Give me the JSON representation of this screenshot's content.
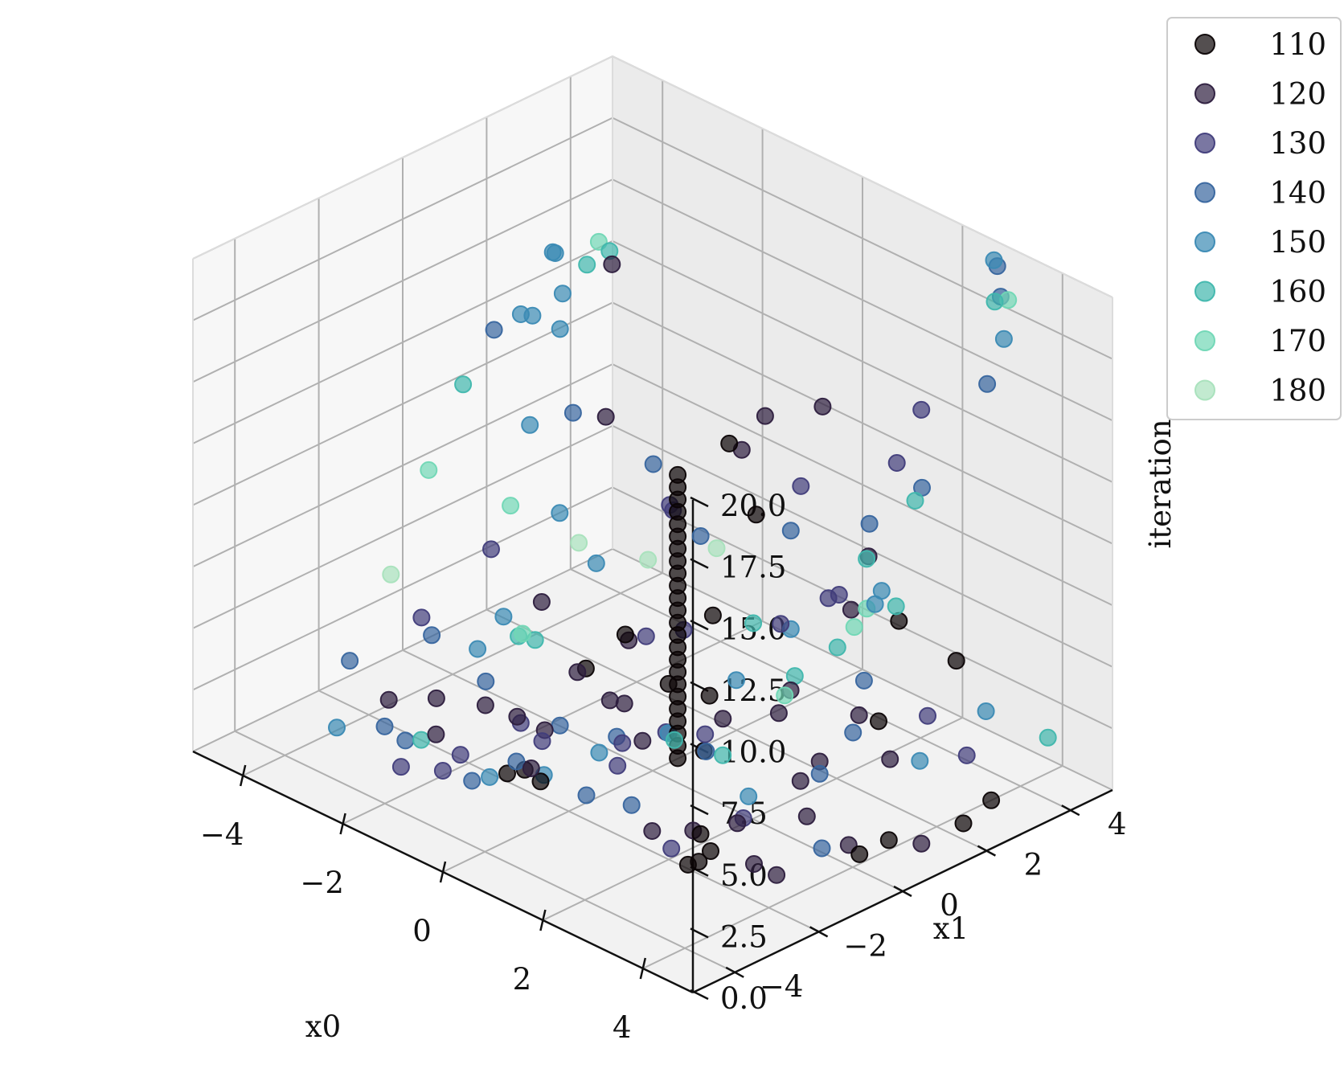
{
  "chart_data": {
    "type": "scatter",
    "projection": "3d",
    "title": "",
    "xlabel": "x0",
    "ylabel": "x1",
    "zlabel": "iteration",
    "xlim": [
      -5,
      5
    ],
    "ylim": [
      -5,
      5
    ],
    "zlim": [
      0,
      20
    ],
    "x_ticks": [
      -4,
      -2,
      0,
      2,
      4
    ],
    "y_ticks": [
      -4,
      -2,
      0,
      2,
      4
    ],
    "z_ticks": [
      0,
      2.5,
      5,
      7.5,
      10,
      12.5,
      15,
      17.5,
      20
    ],
    "x_tick_labels": [
      "−4",
      "−2",
      "0",
      "2",
      "4"
    ],
    "y_tick_labels": [
      "−4",
      "−2",
      "0",
      "2",
      "4"
    ],
    "z_tick_labels": [
      "0.0",
      "2.5",
      "5.0",
      "7.5",
      "10.0",
      "12.5",
      "15.0",
      "17.5",
      "20.0"
    ],
    "grid": true,
    "legend_position": "top-right",
    "marker_alpha": 0.7,
    "series": [
      {
        "name": "110",
        "color": "#0b0405",
        "points": [
          [
            0.5,
            0.0,
            12.5
          ],
          [
            0.5,
            0.0,
            12.0
          ],
          [
            0.5,
            0.0,
            11.5
          ],
          [
            0.5,
            0.0,
            11.0
          ],
          [
            0.5,
            0.0,
            10.5
          ],
          [
            0.5,
            0.0,
            10.0
          ],
          [
            0.5,
            0.0,
            9.5
          ],
          [
            0.5,
            0.0,
            9.0
          ],
          [
            0.5,
            0.0,
            8.5
          ],
          [
            0.5,
            0.0,
            8.0
          ],
          [
            0.5,
            0.0,
            7.5
          ],
          [
            0.5,
            0.0,
            7.0
          ],
          [
            0.5,
            0.0,
            6.5
          ],
          [
            0.5,
            0.0,
            6.0
          ],
          [
            0.5,
            0.0,
            5.5
          ],
          [
            0.5,
            0.0,
            5.0
          ],
          [
            0.5,
            0.0,
            4.5
          ],
          [
            0.5,
            0.0,
            4.0
          ],
          [
            0.5,
            0.0,
            3.5
          ],
          [
            0.5,
            0.0,
            3.0
          ],
          [
            0.5,
            0.0,
            2.5
          ],
          [
            0.5,
            0.0,
            2.0
          ],
          [
            0.5,
            0.0,
            1.5
          ],
          [
            0.5,
            0.0,
            1.0
          ],
          [
            -0.4,
            2.3,
            11.0
          ],
          [
            0.7,
            0.6,
            6.5
          ],
          [
            0.8,
            0.4,
            3.5
          ],
          [
            -0.8,
            0.3,
            4.5
          ],
          [
            -1.0,
            -0.4,
            3.5
          ],
          [
            2.8,
            3.9,
            4.0
          ],
          [
            1.4,
            4.2,
            4.0
          ],
          [
            2.3,
            -1.6,
            1.0
          ],
          [
            2.5,
            -1.6,
            0.5
          ],
          [
            2.6,
            -2.0,
            0.5
          ],
          [
            2.3,
            -1.9,
            0.0
          ],
          [
            -0.9,
            -1.6,
            0.0
          ],
          [
            -1.3,
            -1.5,
            0.0
          ],
          [
            -1.4,
            -1.8,
            0.0
          ],
          [
            0.1,
            1.1,
            0.0
          ],
          [
            3.8,
            0.4,
            0.0
          ],
          [
            3.8,
            1.1,
            0.0
          ],
          [
            4.0,
            3.3,
            0.0
          ],
          [
            4.2,
            2.4,
            0.0
          ],
          [
            2.0,
            3.0,
            1.5
          ],
          [
            -0.7,
            3.3,
            7.0
          ],
          [
            0.4,
            -0.1,
            4.0
          ]
        ]
      },
      {
        "name": "120",
        "color": "#2d1e3e",
        "points": [
          [
            -1.9,
            -2.9,
            2.0
          ],
          [
            -1.5,
            -2.2,
            3.0
          ],
          [
            -1.2,
            -1.8,
            2.5
          ],
          [
            -0.9,
            -1.5,
            2.0
          ],
          [
            -0.5,
            -1.2,
            4.5
          ],
          [
            -0.1,
            -0.9,
            3.5
          ],
          [
            0.3,
            -0.6,
            2.0
          ],
          [
            -1.8,
            -0.5,
            5.5
          ],
          [
            -3.5,
            3.2,
            14.5
          ],
          [
            -2.7,
            2.1,
            10.0
          ],
          [
            -0.1,
            2.8,
            12.0
          ],
          [
            -0.4,
            2.6,
            10.5
          ],
          [
            1.3,
            2.5,
            14.0
          ],
          [
            1.8,
            3.0,
            8.0
          ],
          [
            1.2,
            3.3,
            5.0
          ],
          [
            1.5,
            1.5,
            3.5
          ],
          [
            1.6,
            1.1,
            3.0
          ],
          [
            2.7,
            1.7,
            3.5
          ],
          [
            2.5,
            1.0,
            2.0
          ],
          [
            2.9,
            2.2,
            1.5
          ],
          [
            3.0,
            0.1,
            1.0
          ],
          [
            2.7,
            -1.2,
            1.5
          ],
          [
            3.2,
            -1.4,
            0.5
          ],
          [
            3.4,
            -1.1,
            0.0
          ],
          [
            4.2,
            1.4,
            0.0
          ],
          [
            3.5,
            0.5,
            0.0
          ],
          [
            -0.4,
            -0.2,
            2.5
          ],
          [
            -0.9,
            0.5,
            4.0
          ],
          [
            1.5,
            -1.8,
            0.5
          ],
          [
            1.9,
            -1.3,
            0.5
          ],
          [
            -0.5,
            -2.3,
            1.5
          ],
          [
            -2.9,
            -1.7,
            1.5
          ],
          [
            -3.6,
            -2.0,
            1.0
          ],
          [
            2.2,
            0.9,
            1.0
          ],
          [
            0.9,
            0.6,
            2.5
          ]
        ]
      },
      {
        "name": "130",
        "color": "#413d7b",
        "points": [
          [
            -2.6,
            -2.9,
            0.0
          ],
          [
            -2.1,
            -2.5,
            0.0
          ],
          [
            -1.8,
            -1.0,
            1.0
          ],
          [
            -0.3,
            0.2,
            5.0
          ],
          [
            0.2,
            0.5,
            5.5
          ],
          [
            -1.0,
            1.6,
            8.5
          ],
          [
            -0.6,
            1.2,
            9.0
          ],
          [
            1.2,
            2.1,
            11.0
          ],
          [
            2.7,
            2.6,
            13.0
          ],
          [
            2.1,
            3.9,
            13.5
          ],
          [
            2.3,
            1.7,
            8.0
          ],
          [
            1.3,
            1.5,
            6.0
          ],
          [
            1.5,
            2.4,
            6.5
          ],
          [
            3.4,
            2.5,
            3.5
          ],
          [
            4.1,
            2.6,
            2.5
          ],
          [
            0.4,
            -1.2,
            2.5
          ],
          [
            1.3,
            -0.3,
            3.0
          ],
          [
            -0.7,
            -1.8,
            2.0
          ],
          [
            -2.0,
            -2.2,
            0.5
          ],
          [
            -3.7,
            -1.1,
            3.5
          ],
          [
            -3.4,
            0.2,
            5.5
          ],
          [
            1.8,
            -1.7,
            0.0
          ],
          [
            2.4,
            -0.7,
            1.0
          ],
          [
            -0.2,
            -0.6,
            0.5
          ],
          [
            0.1,
            0.2,
            1.5
          ]
        ]
      },
      {
        "name": "140",
        "color": "#37659e",
        "points": [
          [
            -4.6,
            1.7,
            12.0
          ],
          [
            -2.6,
            1.2,
            11.0
          ],
          [
            -1.5,
            1.8,
            9.5
          ],
          [
            -0.3,
            1.5,
            8.0
          ],
          [
            1.0,
            2.1,
            9.0
          ],
          [
            1.9,
            2.9,
            9.5
          ],
          [
            3.2,
            4.4,
            20.0
          ],
          [
            3.1,
            4.6,
            18.5
          ],
          [
            3.5,
            3.8,
            16.0
          ],
          [
            2.7,
            3.2,
            11.5
          ],
          [
            2.8,
            1.7,
            5.0
          ],
          [
            3.0,
            1.2,
            3.5
          ],
          [
            0.9,
            0.2,
            1.5
          ],
          [
            -0.3,
            -0.5,
            1.5
          ],
          [
            -1.1,
            -0.9,
            1.5
          ],
          [
            -2.5,
            -1.0,
            2.0
          ],
          [
            -4.0,
            -0.5,
            2.0
          ],
          [
            -4.8,
            -1.5,
            1.0
          ],
          [
            -3.6,
            -2.1,
            0.0
          ],
          [
            -3.1,
            -2.2,
            0.0
          ],
          [
            -1.6,
            -2.4,
            0.0
          ],
          [
            -1.3,
            -1.7,
            0.5
          ],
          [
            2.5,
            1.0,
            1.5
          ],
          [
            3.3,
            0.1,
            0.0
          ],
          [
            0.5,
            -1.1,
            0.0
          ],
          [
            0.1,
            -1.7,
            0.5
          ]
        ]
      },
      {
        "name": "150",
        "color": "#3b8ab4",
        "points": [
          [
            -4.4,
            2.1,
            12.5
          ],
          [
            -4.0,
            1.9,
            13.0
          ],
          [
            -3.7,
            2.2,
            12.5
          ],
          [
            -3.9,
            2.5,
            13.5
          ],
          [
            -4.6,
            3.1,
            14.0
          ],
          [
            -4.3,
            2.8,
            14.5
          ],
          [
            -3.8,
            1.6,
            9.0
          ],
          [
            -2.7,
            1.0,
            7.0
          ],
          [
            -1.8,
            0.8,
            6.0
          ],
          [
            -2.9,
            -0.1,
            3.5
          ],
          [
            -3.0,
            -0.6,
            2.5
          ],
          [
            3.3,
            4.2,
            20.5
          ],
          [
            3.5,
            4.2,
            17.5
          ],
          [
            2.9,
            2.0,
            8.5
          ],
          [
            2.6,
            2.2,
            7.5
          ],
          [
            1.0,
            0.8,
            4.0
          ],
          [
            0.4,
            -0.1,
            2.0
          ],
          [
            -0.4,
            -0.8,
            1.0
          ],
          [
            -1.0,
            -1.4,
            0.0
          ],
          [
            -1.5,
            -2.1,
            0.0
          ],
          [
            -3.8,
            -3.0,
            0.5
          ],
          [
            2.0,
            -0.1,
            1.0
          ],
          [
            4.0,
            1.6,
            3.0
          ],
          [
            4.4,
            2.7,
            4.5
          ],
          [
            1.0,
            2.1,
            5.0
          ]
        ]
      },
      {
        "name": "160",
        "color": "#40b7ad",
        "points": [
          [
            -4.0,
            3.2,
            14.0
          ],
          [
            -3.8,
            3.5,
            14.5
          ],
          [
            -4.8,
            1.2,
            10.0
          ],
          [
            3.4,
            4.1,
            19.0
          ],
          [
            2.9,
            2.8,
            11.5
          ],
          [
            2.6,
            2.0,
            9.5
          ],
          [
            2.6,
            2.7,
            7.0
          ],
          [
            2.1,
            1.9,
            5.5
          ],
          [
            1.5,
            1.6,
            4.0
          ],
          [
            -2.6,
            -0.1,
            3.0
          ],
          [
            -2.1,
            -0.3,
            3.5
          ],
          [
            -2.7,
            -2.3,
            0.5
          ],
          [
            0.6,
            -0.2,
            2.0
          ],
          [
            1.4,
            0.0,
            2.0
          ],
          [
            4.8,
            3.7,
            3.0
          ],
          [
            0.5,
            1.8,
            5.0
          ]
        ]
      },
      {
        "name": "170",
        "color": "#70d7b5",
        "points": [
          [
            -4.1,
            3.6,
            14.5
          ],
          [
            3.5,
            4.3,
            19.0
          ],
          [
            -4.9,
            0.5,
            7.0
          ],
          [
            -3.6,
            0.9,
            6.5
          ],
          [
            2.1,
            2.6,
            6.5
          ],
          [
            -2.1,
            -0.6,
            4.0
          ],
          [
            1.8,
            1.0,
            4.0
          ],
          [
            2.1,
            2.3,
            6.0
          ]
        ]
      },
      {
        "name": "180",
        "color": "#a8e1bc",
        "points": [
          [
            -4.9,
            -0.4,
            3.5
          ],
          [
            -1.1,
            1.2,
            6.5
          ],
          [
            -2.4,
            1.1,
            6.0
          ],
          [
            -0.4,
            2.0,
            7.0
          ]
        ]
      }
    ]
  }
}
